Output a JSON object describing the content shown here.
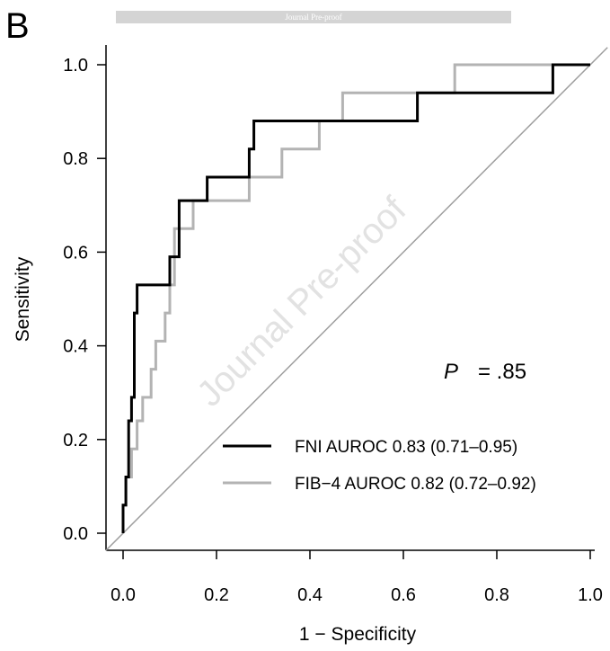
{
  "panel_label": "B",
  "watermark": {
    "banner_text": "Journal Pre-proof",
    "diagonal_text": "Journal Pre-proof"
  },
  "annotation": {
    "p_letter": "P",
    "p_value": "= .85"
  },
  "colors": {
    "fni": "#000000",
    "fib4": "#b3b3b3",
    "reference_line": "#9e9e9e",
    "banner": "#d4d4d4"
  },
  "chart_data": {
    "type": "line",
    "title": "",
    "xlabel": "1 − Specificity",
    "ylabel": "Sensitivity",
    "xlim": [
      0.0,
      1.0
    ],
    "ylim": [
      0.0,
      1.0
    ],
    "x_ticks": [
      "0.0",
      "0.2",
      "0.4",
      "0.6",
      "0.8",
      "1.0"
    ],
    "y_ticks": [
      "0.0",
      "0.2",
      "0.4",
      "0.6",
      "0.8",
      "1.0"
    ],
    "grid": false,
    "legend_position": "bottom-right",
    "reference_line": [
      [
        0,
        0
      ],
      [
        1,
        1
      ]
    ],
    "series": [
      {
        "name": "FNI AUROC 0.83 (0.71–0.95)",
        "color": "#000000",
        "x": [
          0.0,
          0.0,
          0.006,
          0.006,
          0.012,
          0.012,
          0.018,
          0.018,
          0.024,
          0.024,
          0.03,
          0.03,
          0.1,
          0.1,
          0.12,
          0.12,
          0.18,
          0.18,
          0.27,
          0.27,
          0.28,
          0.28,
          0.63,
          0.63,
          0.92,
          0.92,
          1.0
        ],
        "y": [
          0.0,
          0.06,
          0.06,
          0.12,
          0.12,
          0.24,
          0.24,
          0.29,
          0.29,
          0.47,
          0.47,
          0.53,
          0.53,
          0.59,
          0.59,
          0.71,
          0.71,
          0.76,
          0.76,
          0.82,
          0.82,
          0.88,
          0.88,
          0.94,
          0.94,
          1.0,
          1.0
        ]
      },
      {
        "name": "FIB−4 AUROC 0.82 (0.72–0.92)",
        "color": "#b3b3b3",
        "x": [
          0.0,
          0.0,
          0.006,
          0.006,
          0.018,
          0.018,
          0.03,
          0.03,
          0.042,
          0.042,
          0.06,
          0.06,
          0.07,
          0.07,
          0.09,
          0.09,
          0.1,
          0.1,
          0.11,
          0.11,
          0.15,
          0.15,
          0.27,
          0.27,
          0.34,
          0.34,
          0.42,
          0.42,
          0.47,
          0.47,
          0.71,
          0.71,
          1.0
        ],
        "y": [
          0.0,
          0.06,
          0.06,
          0.12,
          0.12,
          0.18,
          0.18,
          0.24,
          0.24,
          0.29,
          0.29,
          0.35,
          0.35,
          0.41,
          0.41,
          0.47,
          0.47,
          0.53,
          0.53,
          0.65,
          0.65,
          0.71,
          0.71,
          0.76,
          0.76,
          0.82,
          0.82,
          0.88,
          0.88,
          0.94,
          0.94,
          1.0,
          1.0
        ]
      }
    ]
  }
}
